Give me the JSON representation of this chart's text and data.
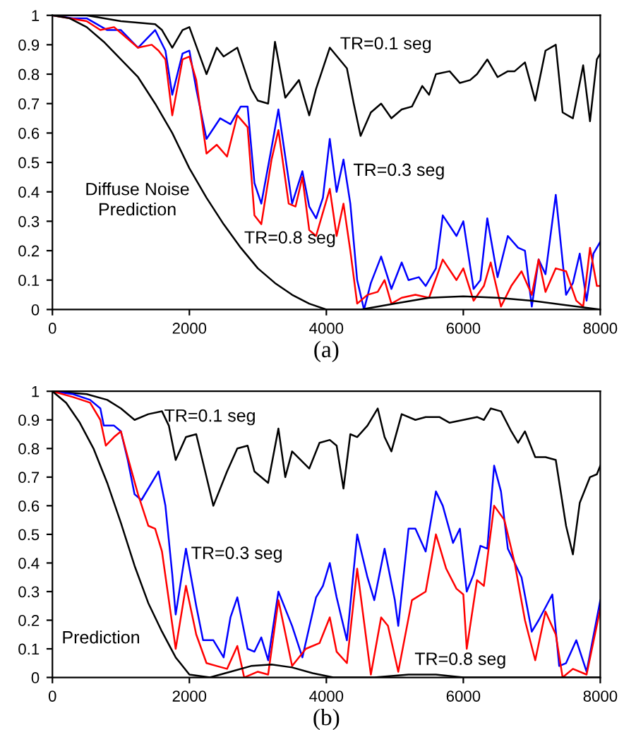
{
  "chart_data": [
    {
      "type": "line",
      "xlabel": "(a)",
      "xlim": [
        0,
        8000
      ],
      "ylim": [
        0,
        1
      ],
      "xticks": [
        0,
        2000,
        4000,
        6000,
        8000
      ],
      "yticks": [
        0,
        0.1,
        0.2,
        0.3,
        0.4,
        0.5,
        0.6,
        0.7,
        0.8,
        0.9,
        1
      ],
      "grid": false,
      "series": [
        {
          "color": "#000000",
          "x": [
            0,
            500,
            1000,
            1500,
            1600,
            1750,
            1900,
            2000,
            2250,
            2400,
            2500,
            2700,
            2900,
            3000,
            3150,
            3250,
            3400,
            3600,
            3750,
            3850,
            4050,
            4300,
            4400,
            4500,
            4650,
            4800,
            4950,
            5100,
            5250,
            5400,
            5500,
            5600,
            5800,
            5950,
            6100,
            6200,
            6350,
            6500,
            6650,
            6750,
            6900,
            7050,
            7200,
            7350,
            7450,
            7600,
            7750,
            7850,
            7950,
            8000
          ],
          "values": [
            1.0,
            1.0,
            0.98,
            0.97,
            0.95,
            0.89,
            0.95,
            0.96,
            0.8,
            0.89,
            0.86,
            0.89,
            0.75,
            0.71,
            0.7,
            0.91,
            0.72,
            0.78,
            0.66,
            0.75,
            0.89,
            0.82,
            0.7,
            0.59,
            0.67,
            0.7,
            0.65,
            0.68,
            0.69,
            0.76,
            0.73,
            0.8,
            0.81,
            0.77,
            0.78,
            0.8,
            0.85,
            0.79,
            0.81,
            0.81,
            0.84,
            0.71,
            0.88,
            0.9,
            0.67,
            0.65,
            0.83,
            0.64,
            0.85,
            0.87
          ]
        },
        {
          "color": "#0000ff",
          "x": [
            0,
            300,
            500,
            800,
            1000,
            1250,
            1500,
            1650,
            1750,
            1900,
            2000,
            2100,
            2250,
            2450,
            2600,
            2750,
            2850,
            2950,
            3050,
            3200,
            3300,
            3400,
            3500,
            3650,
            3750,
            3850,
            3950,
            4050,
            4150,
            4250,
            4350,
            4450,
            4550,
            4650,
            4800,
            4950,
            5100,
            5200,
            5350,
            5450,
            5600,
            5700,
            5900,
            6000,
            6150,
            6250,
            6350,
            6500,
            6650,
            6800,
            6900,
            7000,
            7100,
            7200,
            7350,
            7500,
            7600,
            7700,
            7800,
            7900,
            8000
          ],
          "values": [
            1.0,
            0.99,
            0.99,
            0.95,
            0.95,
            0.89,
            0.95,
            0.88,
            0.73,
            0.87,
            0.88,
            0.75,
            0.58,
            0.65,
            0.63,
            0.69,
            0.69,
            0.43,
            0.36,
            0.55,
            0.68,
            0.52,
            0.36,
            0.47,
            0.35,
            0.31,
            0.38,
            0.58,
            0.4,
            0.51,
            0.36,
            0.1,
            0.0,
            0.09,
            0.18,
            0.07,
            0.16,
            0.1,
            0.11,
            0.08,
            0.14,
            0.32,
            0.25,
            0.3,
            0.07,
            0.1,
            0.31,
            0.11,
            0.25,
            0.21,
            0.2,
            0.01,
            0.17,
            0.12,
            0.39,
            0.05,
            0.09,
            0.19,
            0.03,
            0.19,
            0.23
          ]
        },
        {
          "color": "#ff0000",
          "x": [
            0,
            500,
            700,
            900,
            1100,
            1250,
            1450,
            1550,
            1650,
            1750,
            1900,
            2000,
            2100,
            2250,
            2400,
            2550,
            2700,
            2850,
            2950,
            3050,
            3200,
            3300,
            3450,
            3550,
            3650,
            3750,
            3850,
            3950,
            4050,
            4150,
            4250,
            4350,
            4450,
            4600,
            4750,
            4850,
            4950,
            5100,
            5300,
            5500,
            5700,
            5900,
            6000,
            6150,
            6300,
            6400,
            6550,
            6700,
            6850,
            7000,
            7100,
            7200,
            7350,
            7500,
            7650,
            7750,
            7850,
            7950,
            8000
          ],
          "values": [
            1.0,
            0.98,
            0.95,
            0.96,
            0.92,
            0.89,
            0.9,
            0.88,
            0.85,
            0.66,
            0.85,
            0.86,
            0.78,
            0.53,
            0.56,
            0.52,
            0.66,
            0.62,
            0.32,
            0.29,
            0.51,
            0.61,
            0.36,
            0.35,
            0.45,
            0.27,
            0.25,
            0.33,
            0.41,
            0.25,
            0.36,
            0.2,
            0.02,
            0.05,
            0.06,
            0.1,
            0.02,
            0.04,
            0.05,
            0.04,
            0.17,
            0.1,
            0.14,
            0.03,
            0.08,
            0.16,
            0.01,
            0.08,
            0.13,
            0.05,
            0.17,
            0.06,
            0.14,
            0.13,
            0.03,
            0.01,
            0.21,
            0.08,
            0.08
          ]
        },
        {
          "color": "#000000",
          "x": [
            0,
            250,
            500,
            750,
            1000,
            1250,
            1500,
            1750,
            2000,
            2250,
            2500,
            2750,
            3000,
            3250,
            3500,
            3750,
            4000,
            4250,
            4500,
            4750,
            5000,
            5500,
            6000,
            6500,
            7000,
            7500,
            8000
          ],
          "values": [
            1.0,
            0.99,
            0.96,
            0.91,
            0.85,
            0.79,
            0.7,
            0.6,
            0.48,
            0.38,
            0.29,
            0.21,
            0.14,
            0.09,
            0.05,
            0.02,
            0.0,
            0.0,
            0.0,
            0.01,
            0.02,
            0.04,
            0.045,
            0.04,
            0.03,
            0.015,
            0.0
          ]
        }
      ],
      "annotations": [
        "TR=0.1 seg",
        "TR=0.3 seg",
        "TR=0.8 seg",
        "Diffuse Noise\nPrediction"
      ]
    },
    {
      "type": "line",
      "xlabel": "(b)",
      "xlim": [
        0,
        8000
      ],
      "ylim": [
        0,
        1
      ],
      "xticks": [
        0,
        2000,
        4000,
        6000,
        8000
      ],
      "yticks": [
        0,
        0.1,
        0.2,
        0.3,
        0.4,
        0.5,
        0.6,
        0.7,
        0.8,
        0.9,
        1
      ],
      "grid": false,
      "series": [
        {
          "color": "#000000",
          "x": [
            0,
            500,
            800,
            1000,
            1200,
            1400,
            1600,
            1700,
            1800,
            1950,
            2100,
            2250,
            2350,
            2550,
            2700,
            2850,
            2950,
            3150,
            3300,
            3400,
            3500,
            3750,
            3900,
            4050,
            4150,
            4250,
            4350,
            4450,
            4600,
            4750,
            4850,
            4950,
            5100,
            5300,
            5450,
            5650,
            5800,
            6000,
            6200,
            6300,
            6400,
            6550,
            6700,
            6800,
            6900,
            7050,
            7200,
            7350,
            7500,
            7600,
            7700,
            7850,
            7950,
            8000
          ],
          "values": [
            1.0,
            0.99,
            0.97,
            0.94,
            0.9,
            0.92,
            0.93,
            0.88,
            0.76,
            0.84,
            0.85,
            0.7,
            0.6,
            0.72,
            0.8,
            0.81,
            0.72,
            0.68,
            0.87,
            0.7,
            0.79,
            0.73,
            0.82,
            0.83,
            0.81,
            0.66,
            0.85,
            0.84,
            0.88,
            0.94,
            0.84,
            0.79,
            0.92,
            0.9,
            0.91,
            0.91,
            0.89,
            0.9,
            0.91,
            0.9,
            0.94,
            0.93,
            0.86,
            0.82,
            0.86,
            0.77,
            0.77,
            0.76,
            0.53,
            0.43,
            0.61,
            0.7,
            0.71,
            0.74
          ]
        },
        {
          "color": "#0000ff",
          "x": [
            0,
            300,
            550,
            700,
            750,
            900,
            1000,
            1100,
            1200,
            1300,
            1550,
            1650,
            1750,
            1800,
            1950,
            2100,
            2200,
            2350,
            2500,
            2600,
            2700,
            2850,
            2950,
            3050,
            3150,
            3300,
            3500,
            3650,
            3850,
            3950,
            4050,
            4150,
            4300,
            4450,
            4600,
            4700,
            4850,
            5000,
            5050,
            5200,
            5300,
            5450,
            5600,
            5700,
            5850,
            5950,
            6050,
            6150,
            6250,
            6350,
            6450,
            6550,
            6650,
            6850,
            7000,
            7100,
            7300,
            7400,
            7500,
            7650,
            7800,
            8000
          ],
          "values": [
            1.0,
            0.99,
            0.97,
            0.94,
            0.88,
            0.88,
            0.86,
            0.76,
            0.64,
            0.62,
            0.72,
            0.6,
            0.36,
            0.22,
            0.45,
            0.25,
            0.13,
            0.13,
            0.07,
            0.21,
            0.28,
            0.1,
            0.09,
            0.14,
            0.06,
            0.3,
            0.18,
            0.07,
            0.28,
            0.32,
            0.4,
            0.28,
            0.13,
            0.5,
            0.35,
            0.27,
            0.45,
            0.27,
            0.18,
            0.52,
            0.52,
            0.44,
            0.65,
            0.6,
            0.47,
            0.52,
            0.3,
            0.36,
            0.46,
            0.45,
            0.74,
            0.65,
            0.45,
            0.35,
            0.16,
            0.2,
            0.29,
            0.04,
            0.05,
            0.13,
            0.02,
            0.27
          ]
        },
        {
          "color": "#ff0000",
          "x": [
            0,
            300,
            550,
            700,
            780,
            900,
            1000,
            1100,
            1250,
            1400,
            1500,
            1600,
            1700,
            1800,
            1950,
            2100,
            2250,
            2400,
            2550,
            2700,
            2800,
            3000,
            3150,
            3300,
            3500,
            3700,
            3900,
            4050,
            4150,
            4300,
            4450,
            4650,
            4800,
            4900,
            5050,
            5250,
            5450,
            5600,
            5750,
            5900,
            6000,
            6050,
            6200,
            6300,
            6450,
            6600,
            6750,
            6900,
            7050,
            7200,
            7350,
            7450,
            7600,
            7800,
            8000
          ],
          "values": [
            1.0,
            0.98,
            0.96,
            0.9,
            0.81,
            0.84,
            0.86,
            0.77,
            0.64,
            0.53,
            0.52,
            0.44,
            0.27,
            0.1,
            0.32,
            0.15,
            0.05,
            0.04,
            0.03,
            0.11,
            0.0,
            0.02,
            0.01,
            0.27,
            0.04,
            0.1,
            0.12,
            0.21,
            0.09,
            0.05,
            0.38,
            0.01,
            0.21,
            0.18,
            0.02,
            0.27,
            0.3,
            0.5,
            0.38,
            0.31,
            0.29,
            0.1,
            0.34,
            0.32,
            0.6,
            0.55,
            0.4,
            0.2,
            0.06,
            0.23,
            0.15,
            0.0,
            0.03,
            0.01,
            0.24
          ]
        },
        {
          "color": "#000000",
          "x": [
            0,
            200,
            400,
            600,
            800,
            1000,
            1200,
            1400,
            1600,
            1800,
            2000,
            2300,
            2600,
            2900,
            3200,
            3500,
            3800,
            4100,
            4700,
            5200,
            5600,
            6000,
            7000,
            8000
          ],
          "values": [
            1.0,
            0.96,
            0.89,
            0.8,
            0.68,
            0.54,
            0.39,
            0.26,
            0.16,
            0.07,
            0.01,
            0.0,
            0.02,
            0.04,
            0.045,
            0.035,
            0.015,
            0.0,
            0.0,
            0.01,
            0.01,
            0.0,
            0.0,
            0.0
          ]
        }
      ],
      "annotations": [
        "TR=0.1 seg",
        "TR=0.3 seg",
        "Prediction",
        "TR=0.8 seg"
      ]
    }
  ]
}
